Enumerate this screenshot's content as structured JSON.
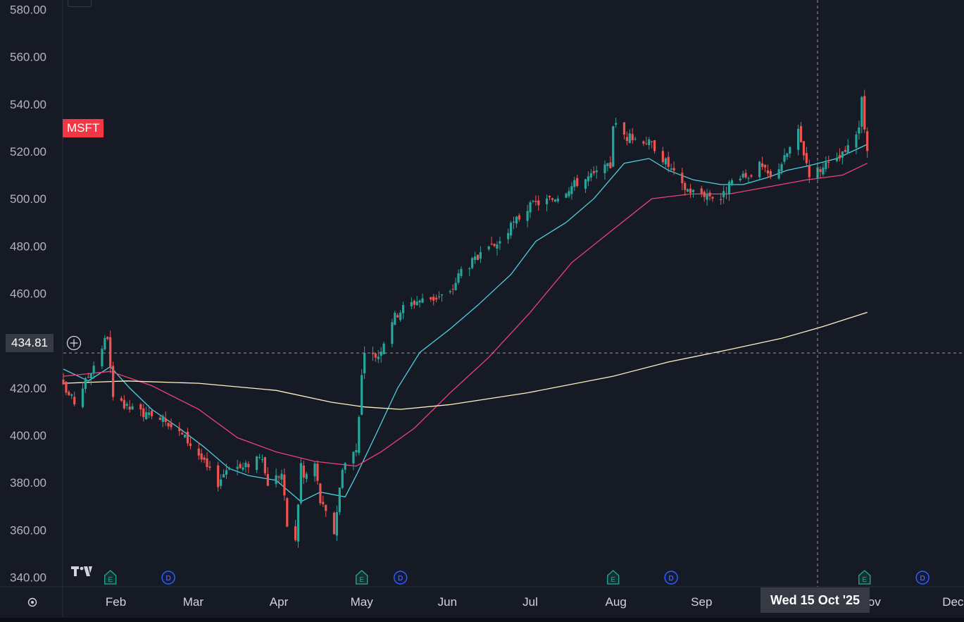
{
  "symbol": "MSFT",
  "cursor": {
    "price_label": "434.81",
    "price": 434.81,
    "date_label": "Wed 15 Oct '25"
  },
  "colors": {
    "background": "#161a25",
    "up": "#26a69a",
    "down": "#ef5350",
    "ma_fast": "#4dd0e1",
    "ma_mid": "#ec407a",
    "ma_slow": "#fff3c4",
    "earnings": "#26a69a",
    "dividend": "#2962ff",
    "symbol_badge": "#f23645"
  },
  "chart_data": {
    "type": "candlestick",
    "title": "",
    "ylim": [
      336,
      584
    ],
    "y_ticks": [
      "340.00",
      "360.00",
      "380.00",
      "400.00",
      "420.00",
      "440.00",
      "460.00",
      "480.00",
      "500.00",
      "520.00",
      "540.00",
      "560.00",
      "580.00"
    ],
    "x_ticks": [
      "Feb",
      "Mar",
      "Apr",
      "May",
      "Jun",
      "Jul",
      "Aug",
      "Sep",
      "Nov",
      "Dec"
    ],
    "x_domain": [
      "2025-01-13",
      "2025-12-05"
    ],
    "events": [
      {
        "type": "E",
        "date": "2025-01-30"
      },
      {
        "type": "D",
        "date": "2025-02-20"
      },
      {
        "type": "E",
        "date": "2025-05-01"
      },
      {
        "type": "D",
        "date": "2025-05-15"
      },
      {
        "type": "E",
        "date": "2025-07-31"
      },
      {
        "type": "D",
        "date": "2025-08-21"
      },
      {
        "type": "E",
        "date": "2025-10-30"
      },
      {
        "type": "D",
        "date": "2025-11-20"
      }
    ],
    "close_path": [
      [
        "2025-01-13",
        420
      ],
      [
        "2025-01-17",
        414
      ],
      [
        "2025-01-22",
        425
      ],
      [
        "2025-01-28",
        440
      ],
      [
        "2025-01-29",
        442
      ],
      [
        "2025-01-30",
        428
      ],
      [
        "2025-01-31",
        415
      ],
      [
        "2025-02-04",
        412
      ],
      [
        "2025-02-10",
        410
      ],
      [
        "2025-02-14",
        407
      ],
      [
        "2025-02-18",
        409
      ],
      [
        "2025-02-21",
        404
      ],
      [
        "2025-02-26",
        399
      ],
      [
        "2025-03-03",
        392
      ],
      [
        "2025-03-06",
        386
      ],
      [
        "2025-03-10",
        380
      ],
      [
        "2025-03-14",
        388
      ],
      [
        "2025-03-19",
        386
      ],
      [
        "2025-03-25",
        392
      ],
      [
        "2025-03-28",
        380
      ],
      [
        "2025-04-02",
        384
      ],
      [
        "2025-04-04",
        362
      ],
      [
        "2025-04-07",
        355
      ],
      [
        "2025-04-09",
        388
      ],
      [
        "2025-04-10",
        382
      ],
      [
        "2025-04-14",
        388
      ],
      [
        "2025-04-16",
        372
      ],
      [
        "2025-04-21",
        359
      ],
      [
        "2025-04-24",
        387
      ],
      [
        "2025-04-29",
        394
      ],
      [
        "2025-05-01",
        425
      ],
      [
        "2025-05-02",
        433
      ],
      [
        "2025-05-07",
        434
      ],
      [
        "2025-05-12",
        449
      ],
      [
        "2025-05-16",
        454
      ],
      [
        "2025-05-21",
        457
      ],
      [
        "2025-05-27",
        458
      ],
      [
        "2025-06-02",
        460
      ],
      [
        "2025-06-06",
        470
      ],
      [
        "2025-06-11",
        474
      ],
      [
        "2025-06-16",
        478
      ],
      [
        "2025-06-20",
        482
      ],
      [
        "2025-06-26",
        491
      ],
      [
        "2025-06-30",
        496
      ],
      [
        "2025-07-03",
        498
      ],
      [
        "2025-07-09",
        500
      ],
      [
        "2025-07-14",
        504
      ],
      [
        "2025-07-18",
        507
      ],
      [
        "2025-07-24",
        510
      ],
      [
        "2025-07-30",
        514
      ],
      [
        "2025-07-31",
        532
      ],
      [
        "2025-08-05",
        526
      ],
      [
        "2025-08-11",
        525
      ],
      [
        "2025-08-15",
        522
      ],
      [
        "2025-08-20",
        514
      ],
      [
        "2025-08-25",
        505
      ],
      [
        "2025-08-29",
        503
      ],
      [
        "2025-09-03",
        502
      ],
      [
        "2025-09-08",
        500
      ],
      [
        "2025-09-12",
        507
      ],
      [
        "2025-09-17",
        509
      ],
      [
        "2025-09-22",
        514
      ],
      [
        "2025-09-26",
        509
      ],
      [
        "2025-10-01",
        517
      ],
      [
        "2025-10-06",
        528
      ],
      [
        "2025-10-10",
        511
      ],
      [
        "2025-10-15",
        513
      ],
      [
        "2025-10-20",
        516
      ],
      [
        "2025-10-24",
        521
      ],
      [
        "2025-10-28",
        531
      ],
      [
        "2025-10-29",
        541
      ],
      [
        "2025-10-31",
        519
      ]
    ],
    "series": [
      {
        "name": "",
        "color_key": "ma_fast",
        "points": [
          [
            "2025-01-13",
            428
          ],
          [
            "2025-01-22",
            423
          ],
          [
            "2025-01-30",
            429
          ],
          [
            "2025-02-06",
            420
          ],
          [
            "2025-02-14",
            411
          ],
          [
            "2025-02-24",
            403
          ],
          [
            "2025-03-05",
            395
          ],
          [
            "2025-03-14",
            386
          ],
          [
            "2025-03-21",
            383
          ],
          [
            "2025-03-31",
            381
          ],
          [
            "2025-04-09",
            372
          ],
          [
            "2025-04-16",
            376
          ],
          [
            "2025-04-25",
            374
          ],
          [
            "2025-04-29",
            383
          ],
          [
            "2025-05-06",
            400
          ],
          [
            "2025-05-14",
            420
          ],
          [
            "2025-05-22",
            435
          ],
          [
            "2025-06-02",
            445
          ],
          [
            "2025-06-12",
            455
          ],
          [
            "2025-06-24",
            468
          ],
          [
            "2025-07-03",
            482
          ],
          [
            "2025-07-14",
            490
          ],
          [
            "2025-07-24",
            500
          ],
          [
            "2025-08-04",
            515
          ],
          [
            "2025-08-13",
            517
          ],
          [
            "2025-08-20",
            512
          ],
          [
            "2025-08-29",
            508
          ],
          [
            "2025-09-08",
            506
          ],
          [
            "2025-09-16",
            506
          ],
          [
            "2025-09-25",
            509
          ],
          [
            "2025-10-02",
            512
          ],
          [
            "2025-10-10",
            514
          ],
          [
            "2025-10-20",
            517
          ],
          [
            "2025-10-31",
            523
          ]
        ]
      },
      {
        "name": "",
        "color_key": "ma_mid",
        "points": [
          [
            "2025-01-13",
            425
          ],
          [
            "2025-01-30",
            427
          ],
          [
            "2025-02-14",
            421
          ],
          [
            "2025-03-03",
            411
          ],
          [
            "2025-03-17",
            399
          ],
          [
            "2025-03-31",
            393
          ],
          [
            "2025-04-14",
            389
          ],
          [
            "2025-04-29",
            387
          ],
          [
            "2025-05-08",
            393
          ],
          [
            "2025-05-20",
            403
          ],
          [
            "2025-06-02",
            418
          ],
          [
            "2025-06-16",
            433
          ],
          [
            "2025-07-01",
            452
          ],
          [
            "2025-07-16",
            473
          ],
          [
            "2025-07-31",
            487
          ],
          [
            "2025-08-14",
            500
          ],
          [
            "2025-08-28",
            502
          ],
          [
            "2025-09-11",
            502
          ],
          [
            "2025-09-25",
            505
          ],
          [
            "2025-10-09",
            508
          ],
          [
            "2025-10-22",
            510
          ],
          [
            "2025-10-31",
            515
          ]
        ]
      },
      {
        "name": "",
        "color_key": "ma_slow",
        "points": [
          [
            "2025-01-13",
            422
          ],
          [
            "2025-02-05",
            423
          ],
          [
            "2025-03-03",
            422
          ],
          [
            "2025-03-31",
            419
          ],
          [
            "2025-04-20",
            414
          ],
          [
            "2025-05-02",
            412
          ],
          [
            "2025-05-15",
            411
          ],
          [
            "2025-06-02",
            413
          ],
          [
            "2025-06-30",
            418
          ],
          [
            "2025-07-31",
            425
          ],
          [
            "2025-08-20",
            431
          ],
          [
            "2025-09-10",
            436
          ],
          [
            "2025-09-30",
            441
          ],
          [
            "2025-10-15",
            446
          ],
          [
            "2025-10-31",
            452
          ]
        ]
      }
    ]
  }
}
